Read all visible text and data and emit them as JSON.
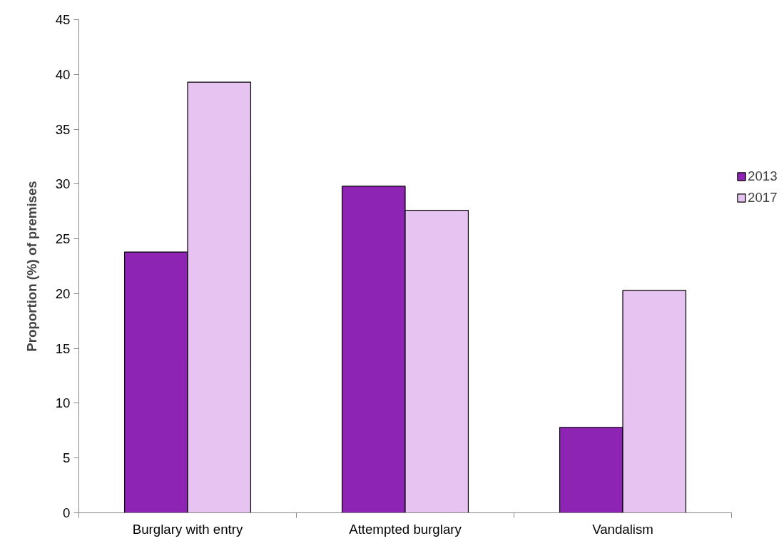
{
  "chart_data": {
    "type": "bar",
    "ylabel": "Proportion (%) of premises",
    "categories": [
      "Burglary with entry",
      "Attempted burglary",
      "Vandalism"
    ],
    "series": [
      {
        "name": "2013",
        "color": "#8e24b4",
        "values": [
          23.8,
          29.8,
          7.8
        ]
      },
      {
        "name": "2017",
        "color": "#e6c3f0",
        "values": [
          39.3,
          27.6,
          20.3
        ]
      }
    ],
    "ylim": [
      0,
      45
    ],
    "yticks": [
      0,
      5,
      10,
      15,
      20,
      25,
      30,
      35,
      40,
      45
    ],
    "grid": false,
    "legend": "right"
  }
}
